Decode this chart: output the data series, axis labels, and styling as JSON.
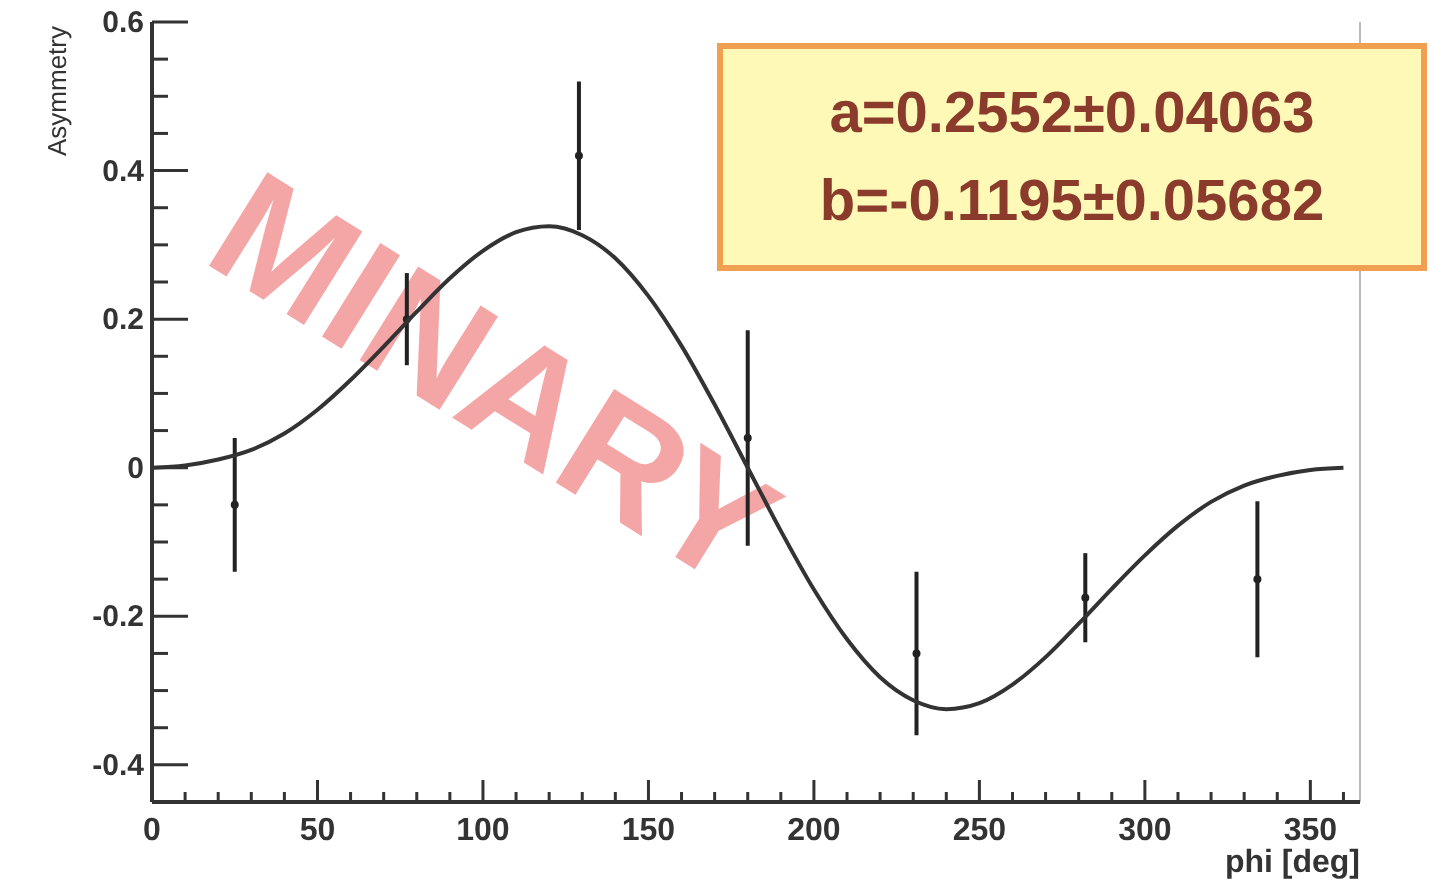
{
  "chart_data": {
    "type": "scatter",
    "xlabel": "phi [deg]",
    "ylabel": "Asymmetry",
    "xlim": [
      0,
      365
    ],
    "ylim": [
      -0.45,
      0.6
    ],
    "xticks": [
      0,
      {
        "value": 10,
        "label": null
      },
      {
        "value": 20,
        "label": null
      },
      {
        "value": 30,
        "label": null
      },
      {
        "value": 40,
        "label": null
      },
      50,
      {
        "value": 60,
        "label": null
      },
      {
        "value": 70,
        "label": null
      },
      {
        "value": 80,
        "label": null
      },
      {
        "value": 90,
        "label": null
      },
      100,
      {
        "value": 110,
        "label": null
      },
      {
        "value": 120,
        "label": null
      },
      {
        "value": 130,
        "label": null
      },
      {
        "value": 140,
        "label": null
      },
      150,
      {
        "value": 160,
        "label": null
      },
      {
        "value": 170,
        "label": null
      },
      {
        "value": 180,
        "label": null
      },
      {
        "value": 190,
        "label": null
      },
      200,
      {
        "value": 210,
        "label": null
      },
      {
        "value": 220,
        "label": null
      },
      {
        "value": 230,
        "label": null
      },
      {
        "value": 240,
        "label": null
      },
      250,
      {
        "value": 260,
        "label": null
      },
      {
        "value": 270,
        "label": null
      },
      {
        "value": 280,
        "label": null
      },
      {
        "value": 290,
        "label": null
      },
      300,
      {
        "value": 310,
        "label": null
      },
      {
        "value": 320,
        "label": null
      },
      {
        "value": 330,
        "label": null
      },
      {
        "value": 340,
        "label": null
      },
      350,
      {
        "value": 360,
        "label": null
      }
    ],
    "yticks": [
      -0.4,
      {
        "value": -0.35,
        "label": null
      },
      {
        "value": -0.3,
        "label": null
      },
      {
        "value": -0.25,
        "label": null
      },
      -0.2,
      {
        "value": -0.15,
        "label": null
      },
      {
        "value": -0.1,
        "label": null
      },
      {
        "value": -0.05,
        "label": null
      },
      0,
      {
        "value": 0.05,
        "label": null
      },
      {
        "value": 0.1,
        "label": null
      },
      {
        "value": 0.15,
        "label": null
      },
      0.2,
      {
        "value": 0.25,
        "label": null
      },
      {
        "value": 0.3,
        "label": null
      },
      {
        "value": 0.35,
        "label": null
      },
      0.4,
      {
        "value": 0.45,
        "label": null
      },
      {
        "value": 0.5,
        "label": null
      },
      {
        "value": 0.55,
        "label": null
      },
      0.6
    ],
    "grid": false,
    "marker": "circle",
    "series": [
      {
        "color": "#222222",
        "x": [
          25,
          77,
          129,
          180,
          231,
          282,
          334
        ],
        "values": [
          -0.05,
          0.2,
          0.42,
          0.04,
          -0.25,
          -0.175,
          -0.15
        ],
        "errors": [
          0.09,
          0.062,
          0.1,
          0.145,
          0.11,
          0.06,
          0.105
        ]
      },
      {
        "type": "line",
        "color": "#333333",
        "marker": "none",
        "line_style": "solid",
        "x": [
          0,
          10,
          20,
          30,
          40,
          50,
          60,
          70,
          80,
          90,
          100,
          110,
          120,
          130,
          140,
          150,
          160,
          170,
          180,
          190,
          200,
          210,
          220,
          230,
          240,
          250,
          260,
          270,
          280,
          290,
          300,
          310,
          320,
          330,
          340,
          350,
          360
        ],
        "values": [
          0,
          0.003,
          0.011,
          0.024,
          0.046,
          0.078,
          0.118,
          0.163,
          0.21,
          0.255,
          0.292,
          0.317,
          0.325,
          0.313,
          0.282,
          0.231,
          0.164,
          0.085,
          0,
          -0.085,
          -0.164,
          -0.231,
          -0.282,
          -0.313,
          -0.325,
          -0.317,
          -0.292,
          -0.255,
          -0.21,
          -0.163,
          -0.118,
          -0.078,
          -0.046,
          -0.024,
          -0.011,
          -0.003,
          0
        ]
      }
    ],
    "annotations": [
      "a=0.2552±0.04063",
      "b=-0.1195±0.05682",
      "MINARY"
    ]
  }
}
